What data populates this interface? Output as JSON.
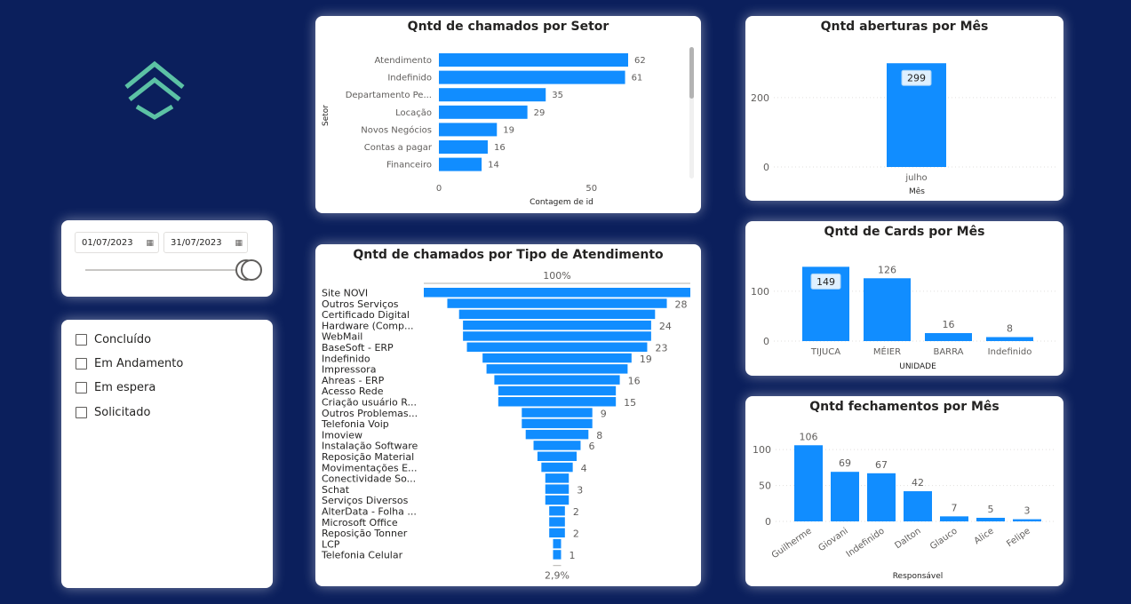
{
  "colors": {
    "background": "#0b1f5c",
    "bar": "#118dff",
    "logo": "#5cc2a5"
  },
  "logo": {
    "icon": "house-logo-icon"
  },
  "date_filter": {
    "start": "01/07/2023",
    "end": "31/07/2023",
    "icon": "calendar-icon"
  },
  "status_filter": {
    "items": [
      "Concluído",
      "Em Andamento",
      "Em espera",
      "Solicitado"
    ]
  },
  "setor_chart": {
    "chart_data": {
      "type": "bar",
      "orientation": "horizontal",
      "title": "Qntd de chamados por Setor",
      "xlabel": "Contagem de id",
      "ylabel": "Setor",
      "categories": [
        "Atendimento",
        "Indefinido",
        "Departamento Pe...",
        "Locação",
        "Novos Negócios",
        "Contas a pagar",
        "Financeiro"
      ],
      "values": [
        62,
        61,
        35,
        29,
        19,
        16,
        14
      ],
      "xticks": [
        "0",
        "50"
      ],
      "xlim": [
        0,
        72
      ]
    }
  },
  "tipo_chart": {
    "chart_data": {
      "type": "bar",
      "subtype": "funnel",
      "title": "Qntd de chamados por Tipo de Atendimento",
      "top_label": "100%",
      "bottom_label": "2,9%",
      "categories": [
        "Site NOVI",
        "Outros Serviços",
        "Certificado Digital",
        "Hardware (Comp...",
        "WebMail",
        "BaseSoft - ERP",
        "Indefinido",
        "Impressora",
        "Ahreas - ERP",
        "Acesso Rede",
        "Criação usuário R...",
        "Outros Problemas...",
        "Telefonia Voip",
        "Imoview",
        "Instalação Software",
        "Reposição Material",
        "Movimentações E...",
        "Conectividade So...",
        "Schat",
        "Serviços Diversos",
        "AlterData - Folha ...",
        "Microsoft Office",
        "Reposição Tonner",
        "LCP",
        "Telefonia Celular"
      ],
      "values": [
        34,
        28,
        25,
        24,
        24,
        23,
        19,
        18,
        16,
        15,
        15,
        9,
        9,
        8,
        6,
        5,
        4,
        3,
        3,
        3,
        2,
        2,
        2,
        1,
        1
      ],
      "data_labels": [
        "",
        "28",
        "",
        "24",
        "",
        "23",
        "19",
        "",
        "16",
        "",
        "15",
        "9",
        "",
        "8",
        "6",
        "",
        "4",
        "",
        "3",
        "",
        "2",
        "",
        "2",
        "",
        "1"
      ]
    }
  },
  "aberturas_chart": {
    "chart_data": {
      "type": "bar",
      "title": "Qntd aberturas por Mês",
      "xlabel": "Mês",
      "categories": [
        "julho"
      ],
      "values": [
        299
      ],
      "yticks": [
        "0",
        "200"
      ],
      "ylim": [
        0,
        320
      ]
    }
  },
  "cards_chart": {
    "chart_data": {
      "type": "bar",
      "title": "Qntd de Cards por Mês",
      "xlabel": "UNIDADE",
      "categories": [
        "TIJUCA",
        "MÉIER",
        "BARRA",
        "Indefinido"
      ],
      "values": [
        149,
        126,
        16,
        8
      ],
      "yticks": [
        "0",
        "100"
      ],
      "ylim": [
        0,
        155
      ],
      "highlighted_labels": [
        0
      ]
    }
  },
  "fechamentos_chart": {
    "chart_data": {
      "type": "bar",
      "title": "Qntd fechamentos por Mês",
      "xlabel": "Responsável",
      "categories": [
        "Guilherme",
        "Giovani",
        "Indefinido",
        "Dalton",
        "Glauco",
        "Alice",
        "Felipe"
      ],
      "values": [
        106,
        69,
        67,
        42,
        7,
        5,
        3
      ],
      "yticks": [
        "0",
        "50",
        "100"
      ],
      "ylim": [
        0,
        115
      ]
    }
  }
}
